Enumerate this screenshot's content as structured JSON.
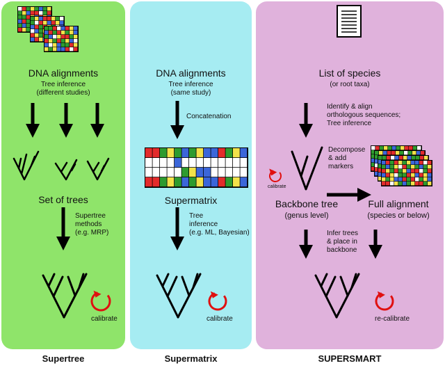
{
  "supertree": {
    "heading": "DNA alignments",
    "subheading": "Tree inference\n(different studies)",
    "set_label": "Set of trees",
    "method_label": "Supertree\nmethods\n(e.g. MRP)",
    "calibrate_label": "calibrate",
    "footer": "Supertree"
  },
  "supermatrix": {
    "heading": "DNA alignments",
    "subheading": "Tree inference\n(same study)",
    "concat_label": "Concatenation",
    "matrix_label": "Supermatrix",
    "method_label": "Tree\ninference\n(e.g. ML, Bayesian)",
    "calibrate_label": "calibrate",
    "footer": "Supermatrix",
    "rows": [
      "AATGTCTGCCATGC",
      "--- C?????????",
      "????-TGCC?????",
      "AATGTCTGCCATGC"
    ]
  },
  "supersmart": {
    "heading": "List of species",
    "subheading": "(or root taxa)",
    "step1_label": "Identify & align\northologous sequences;\nTree inference",
    "decompose_label": "Decompose\n& add\nmarkers",
    "small_calibrate_label": "calibrate",
    "backbone_label": "Backbone tree",
    "backbone_sub": "(genus level)",
    "full_label": "Full alignment",
    "full_sub": "(species or below)",
    "infer_label": "Infer trees\n& place in\nbackbone",
    "recalibrate_label": "re-calibrate",
    "footer": "SUPERSMART"
  },
  "colors": {
    "A": "#e32b2b",
    "T": "#2e9b2e",
    "G": "#f3e24a",
    "C": "#3b66d9",
    "supertree_panel": "#8fe46a",
    "supermatrix_panel": "#a6ecf2",
    "supersmart_panel": "#e0b2dc",
    "calibrate_arrow": "#e01010"
  },
  "icons": {
    "alignment": "dna-alignment-icon",
    "document": "document-list-icon",
    "tree": "phylogenetic-tree-icon",
    "calibrate": "circular-arrow-icon"
  }
}
